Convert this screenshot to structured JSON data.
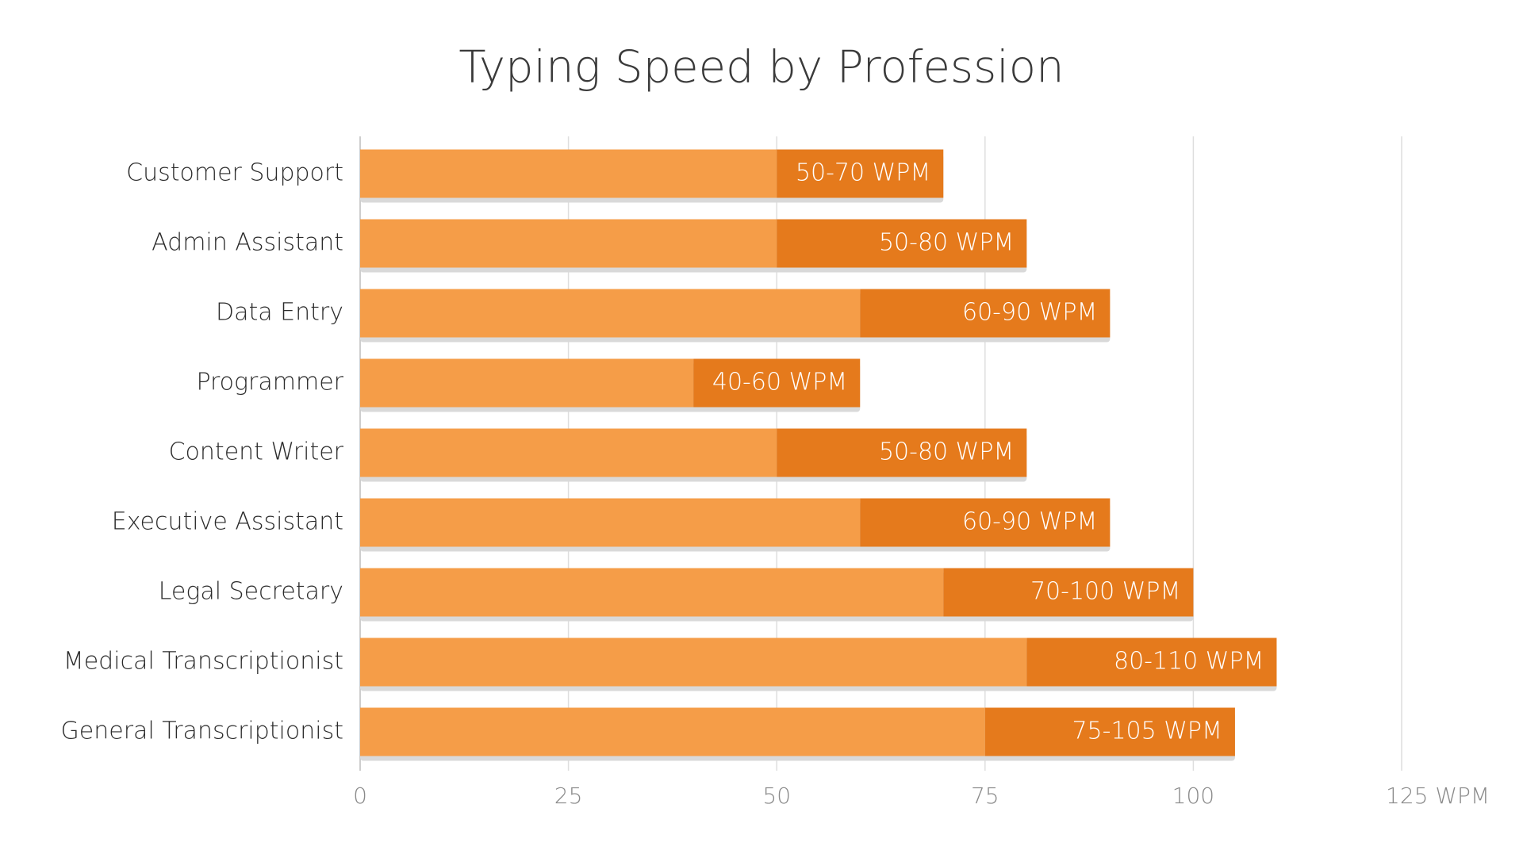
{
  "chart_data": {
    "type": "range_bar",
    "title": "Typing Speed by Profession",
    "categories": [
      "Customer Support",
      "Admin Assistant",
      "Data Entry",
      "Programmer",
      "Content Writer",
      "Executive Assistant",
      "Legal Secretary",
      "Medical Transcriptionist",
      "General Transcriptionist"
    ],
    "low": [
      50,
      50,
      60,
      40,
      50,
      60,
      70,
      80,
      75
    ],
    "high": [
      70,
      80,
      90,
      60,
      80,
      90,
      100,
      110,
      105
    ],
    "value_labels": [
      "50-70 WPM",
      "50-80 WPM",
      "60-90 WPM",
      "40-60 WPM",
      "50-80 WPM",
      "60-90 WPM",
      "70-100 WPM",
      "80-110 WPM",
      "75-105 WPM"
    ],
    "colors": [
      "#f59d48",
      "#e57a1c"
    ],
    "xlim": [
      0,
      125
    ],
    "xticks": [
      0,
      25,
      50,
      75,
      100,
      {
        "value": 125,
        "label": "125 WPM"
      }
    ],
    "grid": true
  }
}
